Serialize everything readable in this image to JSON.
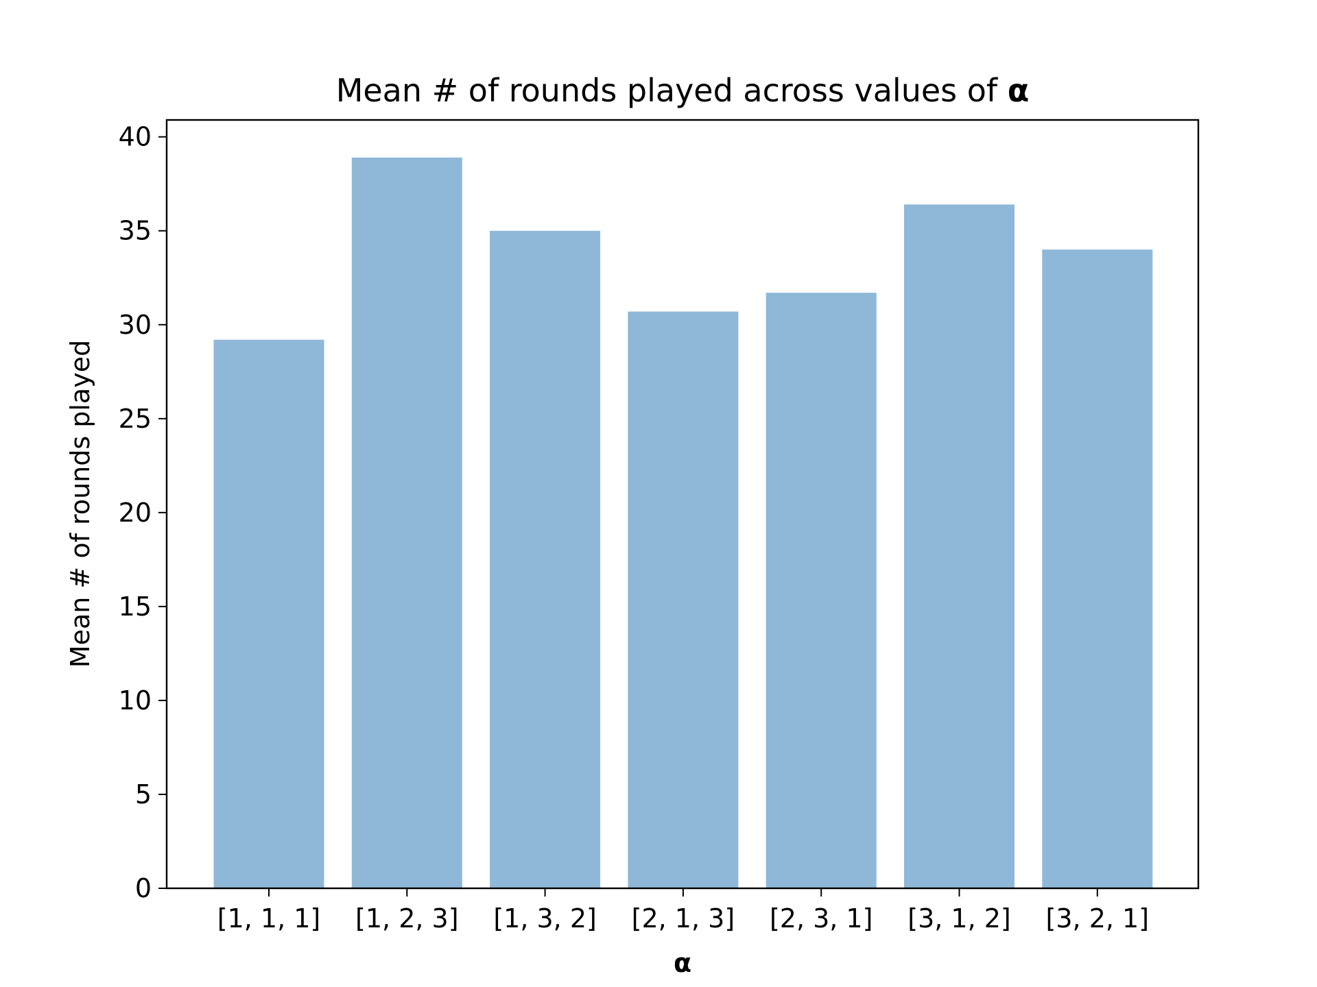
{
  "chart_data": {
    "type": "bar",
    "title_main": "Mean # of rounds played across values of ",
    "title_symbol": "α",
    "xlabel": "α",
    "ylabel": "Mean # of rounds played",
    "categories": [
      "[1, 1, 1]",
      "[1, 2, 3]",
      "[1, 3, 2]",
      "[2, 1, 3]",
      "[2, 3, 1]",
      "[3, 1, 2]",
      "[3, 2, 1]"
    ],
    "values": [
      29.2,
      38.9,
      35.0,
      30.7,
      31.7,
      36.4,
      34.0
    ],
    "ylim": [
      0,
      40.9
    ],
    "yticks": [
      0,
      5,
      10,
      15,
      20,
      25,
      30,
      35,
      40
    ],
    "grid": false,
    "legend": "none",
    "bar_color": "#8fb8d8"
  }
}
